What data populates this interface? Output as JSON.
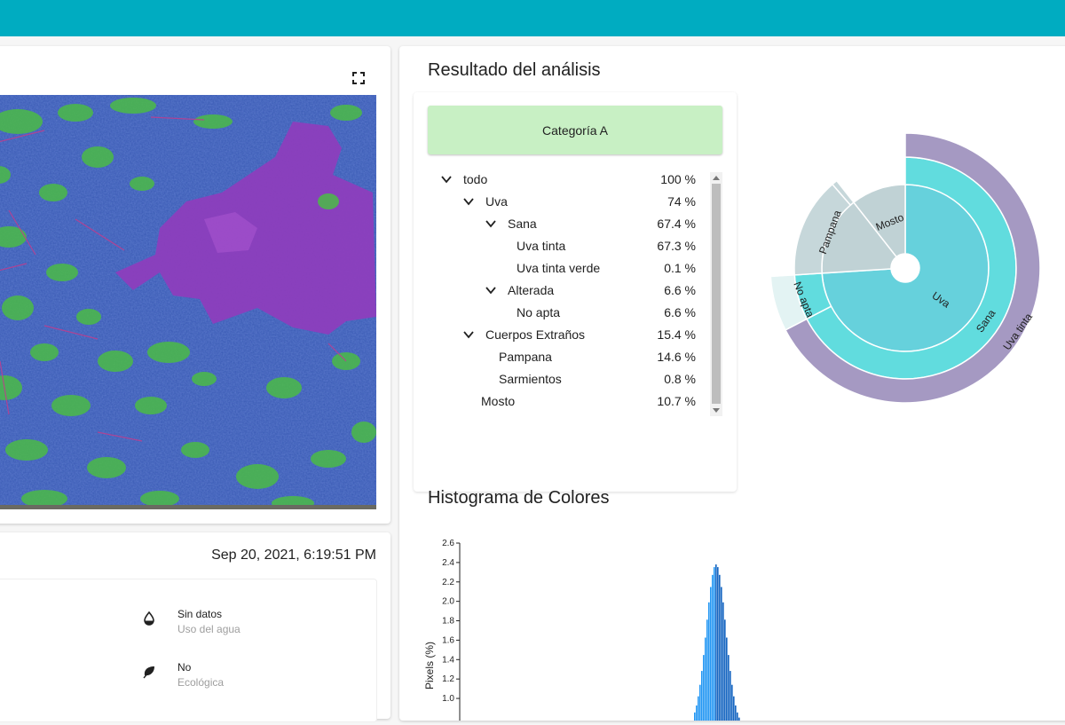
{
  "analysis": {
    "title": "Resultado del análisis",
    "category_button": "Categoría A",
    "tree": [
      {
        "label": "todo",
        "value": "100 %",
        "expanded": true
      },
      {
        "label": "Uva",
        "value": "74 %",
        "expanded": true
      },
      {
        "label": "Sana",
        "value": "67.4 %",
        "expanded": true
      },
      {
        "label": "Uva tinta",
        "value": "67.3 %"
      },
      {
        "label": "Uva tinta verde",
        "value": "0.1 %"
      },
      {
        "label": "Alterada",
        "value": "6.6 %",
        "expanded": true
      },
      {
        "label": "No apta",
        "value": "6.6 %"
      },
      {
        "label": "Cuerpos Extraños",
        "value": "15.4 %",
        "expanded": true
      },
      {
        "label": "Pampana",
        "value": "14.6 %"
      },
      {
        "label": "Sarmientos",
        "value": "0.8 %"
      },
      {
        "label": "Mosto",
        "value": "10.7 %"
      }
    ],
    "sunburst_labels": {
      "uva": "Uva",
      "sana": "Sana",
      "uva_tinta": "Uva tinta",
      "no_apta": "No apta",
      "pampana": "Pampana",
      "mosto": "Mosto"
    },
    "colors": {
      "category_green": "#c8f0c4",
      "uva_inner": "#66d1dc",
      "uva_mid": "#61dcde",
      "uva_outer": "#a599c2",
      "grey_inner": "#c0d2d5",
      "grey_mid": "#c6d7da",
      "no_apta": "#e3f3f3"
    }
  },
  "info": {
    "timestamp": "Sep 20, 2021, 6:19:51 PM",
    "items": [
      {
        "icon": "water-drop-icon",
        "main": "Sin datos",
        "sub": "Uso del agua"
      },
      {
        "icon": "leaf-icon",
        "main": "No",
        "sub": "Ecológica"
      }
    ]
  },
  "histogram": {
    "title": "Histograma de Colores"
  },
  "chart_data": {
    "type": "bar",
    "title": "Histograma de Colores",
    "ylabel": "Pixels (%)",
    "xlabel": "",
    "ylim": [
      0.9,
      2.6
    ],
    "yticks": [
      "2.6",
      "2.4",
      "2.2",
      "2.0",
      "1.8",
      "1.6",
      "1.4",
      "1.2",
      "1.0"
    ],
    "peak_value": 2.38,
    "color": "#1e88e5"
  }
}
